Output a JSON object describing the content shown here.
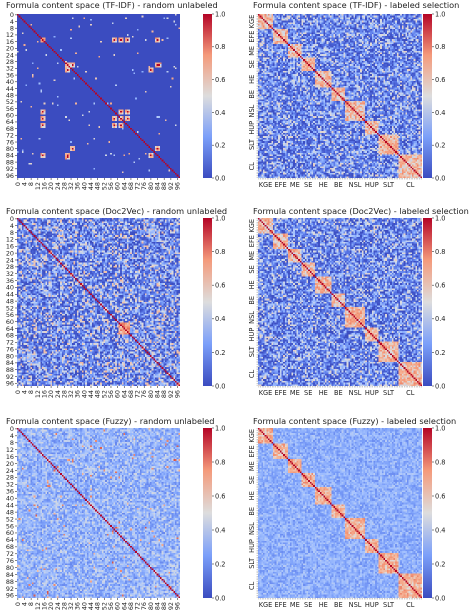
{
  "colormap": {
    "name": "coolwarm",
    "low": "#3b4cc0",
    "mid": "#dddddd",
    "high": "#b40426"
  },
  "colorbar_ticks": [
    "0.0",
    "0.2",
    "0.4",
    "0.6",
    "0.8",
    "1.0"
  ],
  "chart_data": [
    {
      "type": "heatmap",
      "title": "Formula content space (TF-IDF) - random unlabeled",
      "size": 98,
      "vlim": [
        0,
        1
      ],
      "tick_labels": [
        "0",
        "4",
        "8",
        "12",
        "16",
        "20",
        "24",
        "28",
        "32",
        "36",
        "40",
        "44",
        "48",
        "52",
        "56",
        "60",
        "64",
        "68",
        "72",
        "76",
        "80",
        "84",
        "88",
        "92",
        "96"
      ],
      "pattern": "sparse",
      "hotspots": [
        [
          15,
          15
        ],
        [
          15,
          62
        ],
        [
          15,
          66
        ],
        [
          15,
          84
        ],
        [
          30,
          30
        ],
        [
          30,
          33
        ],
        [
          30,
          84
        ],
        [
          58,
          15
        ],
        [
          58,
          62
        ],
        [
          58,
          66
        ],
        [
          62,
          15
        ],
        [
          62,
          62
        ],
        [
          62,
          66
        ],
        [
          80,
          33
        ],
        [
          80,
          84
        ],
        [
          85,
          30
        ]
      ]
    },
    {
      "type": "heatmap",
      "title": "Formula content space (TF-IDF) - labeled selection",
      "size": 98,
      "vlim": [
        0,
        1
      ],
      "tick_labels": [
        "KGE",
        "EFE",
        "ME",
        "SE",
        "HE",
        "BE",
        "NSL",
        "HUP",
        "SLT",
        "CL"
      ],
      "pattern": "blocks"
    },
    {
      "type": "heatmap",
      "title": "Formula content space (Doc2Vec) - random unlabeled",
      "size": 98,
      "vlim": [
        0,
        1
      ],
      "tick_labels": [
        "0",
        "4",
        "8",
        "12",
        "16",
        "20",
        "24",
        "28",
        "32",
        "36",
        "40",
        "44",
        "48",
        "52",
        "56",
        "60",
        "64",
        "68",
        "72",
        "76",
        "80",
        "84",
        "88",
        "92",
        "96"
      ],
      "pattern": "noise"
    },
    {
      "type": "heatmap",
      "title": "Formula content space (Doc2Vec) - labeled selection",
      "size": 98,
      "vlim": [
        0,
        1
      ],
      "tick_labels": [
        "KGE",
        "EFE",
        "ME",
        "SE",
        "HE",
        "BE",
        "NSL",
        "HUP",
        "SLT",
        "CL"
      ],
      "pattern": "blocks"
    },
    {
      "type": "heatmap",
      "title": "Formula content space (Fuzzy) - random unlabeled",
      "size": 98,
      "vlim": [
        0,
        1
      ],
      "tick_labels": [
        "0",
        "4",
        "8",
        "12",
        "16",
        "20",
        "24",
        "28",
        "32",
        "36",
        "40",
        "44",
        "48",
        "52",
        "56",
        "60",
        "64",
        "68",
        "72",
        "76",
        "80",
        "84",
        "88",
        "92",
        "96"
      ],
      "pattern": "fuzzy"
    },
    {
      "type": "heatmap",
      "title": "Formula content space (Fuzzy) - labeled selection",
      "size": 98,
      "vlim": [
        0,
        1
      ],
      "tick_labels": [
        "KGE",
        "EFE",
        "ME",
        "SE",
        "HE",
        "BE",
        "NSL",
        "HUP",
        "SLT",
        "CL"
      ],
      "pattern": "fuzzyblocks"
    }
  ]
}
